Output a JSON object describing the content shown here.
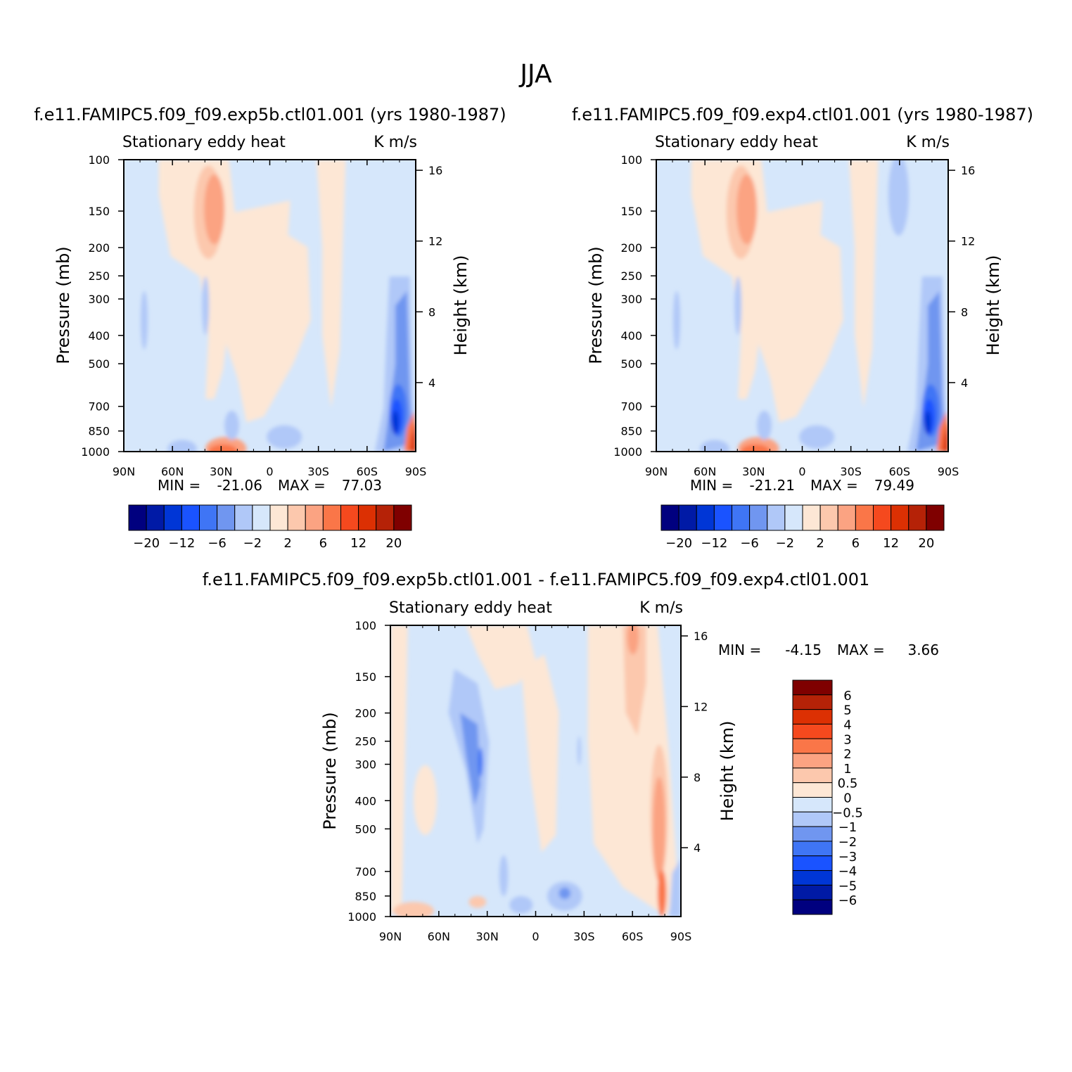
{
  "title": "JJA",
  "chart_data": [
    {
      "type": "contour",
      "id": "left",
      "case_title": "f.e11.FAMIPC5.f09_f09.exp5b.ctl01.001 (yrs 1980-1987)",
      "variable": "Stationary eddy heat",
      "units": "K m/s",
      "ylabel": "Pressure (mb)",
      "ylabel_right": "Height (km)",
      "x_ticks": [
        "90N",
        "60N",
        "30N",
        "0",
        "30S",
        "60S",
        "90S"
      ],
      "p_ticks": [
        100,
        150,
        200,
        250,
        300,
        400,
        500,
        700,
        850,
        1000
      ],
      "height_ticks": [
        4,
        8,
        12,
        16
      ],
      "min_label": "MIN =",
      "max_label": "MAX =",
      "min": "-21.06",
      "max": "77.03",
      "levels": [
        -20,
        -16,
        -12,
        -8,
        -6,
        -4,
        -2,
        0,
        2,
        4,
        6,
        8,
        12,
        16,
        20
      ],
      "level_labels": [
        "-20",
        "-12",
        "-6",
        "-2",
        "2",
        "6",
        "12",
        "20"
      ]
    },
    {
      "type": "contour",
      "id": "right",
      "case_title": "f.e11.FAMIPC5.f09_f09.exp4.ctl01.001 (yrs 1980-1987)",
      "variable": "Stationary eddy heat",
      "units": "K m/s",
      "ylabel": "Pressure (mb)",
      "ylabel_right": "Height (km)",
      "x_ticks": [
        "90N",
        "60N",
        "30N",
        "0",
        "30S",
        "60S",
        "90S"
      ],
      "p_ticks": [
        100,
        150,
        200,
        250,
        300,
        400,
        500,
        700,
        850,
        1000
      ],
      "height_ticks": [
        4,
        8,
        12,
        16
      ],
      "min_label": "MIN =",
      "max_label": "MAX =",
      "min": "-21.21",
      "max": "79.49",
      "levels": [
        -20,
        -16,
        -12,
        -8,
        -6,
        -4,
        -2,
        0,
        2,
        4,
        6,
        8,
        12,
        16,
        20
      ],
      "level_labels": [
        "-20",
        "-12",
        "-6",
        "-2",
        "2",
        "6",
        "12",
        "20"
      ]
    },
    {
      "type": "contour",
      "id": "diff",
      "case_title": "f.e11.FAMIPC5.f09_f09.exp5b.ctl01.001 - f.e11.FAMIPC5.f09_f09.exp4.ctl01.001",
      "variable": "Stationary eddy heat",
      "units": "K m/s",
      "ylabel": "Pressure (mb)",
      "ylabel_right": "Height (km)",
      "x_ticks": [
        "90N",
        "60N",
        "30N",
        "0",
        "30S",
        "60S",
        "90S"
      ],
      "p_ticks": [
        100,
        150,
        200,
        250,
        300,
        400,
        500,
        700,
        850,
        1000
      ],
      "height_ticks": [
        4,
        8,
        12,
        16
      ],
      "min_label": "MIN =",
      "max_label": "MAX =",
      "min": "-4.15",
      "max": "3.66",
      "levels": [
        -6,
        -5,
        -4,
        -3,
        -2,
        -1,
        -0.5,
        0,
        0.5,
        1,
        2,
        3,
        4,
        5,
        6
      ],
      "level_labels": [
        "6",
        "5",
        "4",
        "3",
        "2",
        "1",
        "0.5",
        "0",
        "-0.5",
        "-1",
        "-2",
        "-3",
        "-4",
        "-5",
        "-6"
      ]
    }
  ],
  "colors": {
    "palette": [
      "#00007f",
      "#001aa6",
      "#0036d6",
      "#1a53ff",
      "#3f75f5",
      "#7096f0",
      "#b0c8f8",
      "#d6e7fb",
      "#fde7d5",
      "#fcc8ad",
      "#fba382",
      "#fa7648",
      "#f5491e",
      "#dc3003",
      "#b52207",
      "#7f0000"
    ],
    "axis": "#000000"
  }
}
